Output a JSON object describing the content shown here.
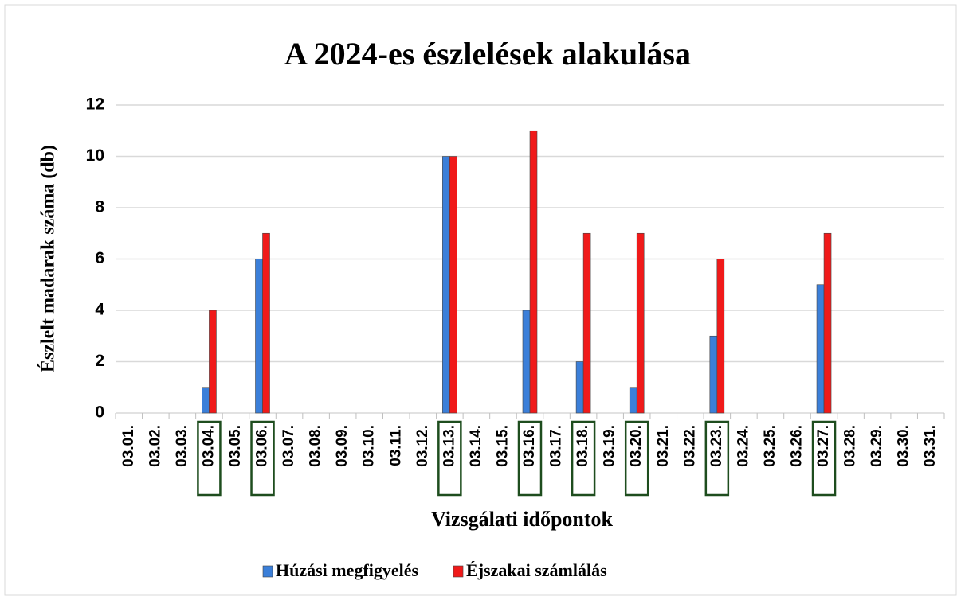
{
  "chart_data": {
    "type": "bar",
    "title": "A 2024-es észlelések alakulása",
    "x_label": "Vizsgálati időpontok",
    "y_label": "Észlelt madarak száma (db)",
    "categories": [
      "03.01.",
      "03.02.",
      "03.03.",
      "03.04.",
      "03.05.",
      "03.06.",
      "03.07.",
      "03.08.",
      "03.09.",
      "03.10.",
      "03.11.",
      "03.12.",
      "03.13.",
      "03.14.",
      "03.15.",
      "03.16.",
      "03.17.",
      "03.18.",
      "03.19.",
      "03.20.",
      "03.21.",
      "03.22.",
      "03.23.",
      "03.24.",
      "03.25.",
      "03.26.",
      "03.27.",
      "03.28.",
      "03.29.",
      "03.30.",
      "03.31."
    ],
    "series": [
      {
        "name": "Húzási megfigyelés",
        "color": "#3b7fd9",
        "values": [
          0,
          0,
          0,
          1,
          0,
          6,
          0,
          0,
          0,
          0,
          0,
          0,
          10,
          0,
          0,
          4,
          0,
          2,
          0,
          1,
          0,
          0,
          3,
          0,
          0,
          0,
          5,
          0,
          0,
          0,
          0
        ]
      },
      {
        "name": "Éjszakai számlálás",
        "color": "#f01a1a",
        "values": [
          0,
          0,
          0,
          4,
          0,
          7,
          0,
          0,
          0,
          0,
          0,
          0,
          10,
          0,
          0,
          11,
          0,
          7,
          0,
          7,
          0,
          0,
          6,
          0,
          0,
          0,
          7,
          0,
          0,
          0,
          0
        ]
      }
    ],
    "ylim": [
      0,
      12
    ],
    "yticks": [
      0,
      2,
      4,
      6,
      8,
      10,
      12
    ],
    "grid": true,
    "legend": "bottom"
  }
}
